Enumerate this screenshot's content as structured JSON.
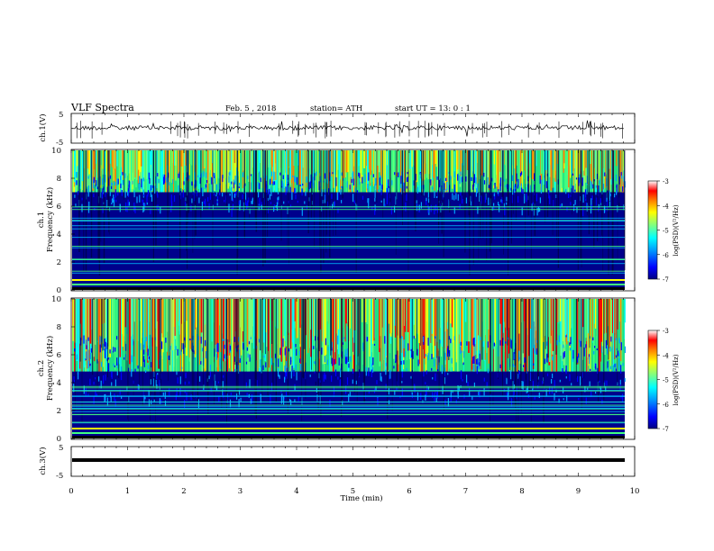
{
  "header": {
    "title": "VLF  Spectra",
    "date": "Feb. 5  , 2018",
    "station": "station= ATH",
    "start_ut": "start  UT  =    13: 0   : 1"
  },
  "colors": {
    "jet": [
      "#000080",
      "#0000ff",
      "#00a0ff",
      "#00ffff",
      "#80ff80",
      "#ffff00",
      "#ff8000",
      "#ff0000",
      "#ffffff"
    ]
  },
  "chart_data": [
    {
      "type": "line",
      "id": "ch1",
      "ylabel": "ch.1(V)",
      "ylim": [
        -5,
        5
      ],
      "yticks": [
        "5",
        "-5"
      ],
      "xlim": [
        0,
        10
      ]
    },
    {
      "type": "heatmap",
      "id": "spec1",
      "ylabel_top": "ch.1",
      "ylabel": "Frequency  (kHz)",
      "ylim": [
        0,
        10
      ],
      "yticks": [
        "0",
        "2",
        "4",
        "6",
        "8",
        "10"
      ],
      "xlim": [
        0,
        10
      ],
      "colorbar": {
        "label": "log(PSD)(V²/Hz)",
        "range": [
          -7,
          -3
        ],
        "ticks": [
          "-3",
          "-4",
          "-5",
          "-6",
          "-7"
        ]
      }
    },
    {
      "type": "heatmap",
      "id": "spec2",
      "ylabel_top": "ch.2",
      "ylabel": "Frequency  (kHz)",
      "ylim": [
        0,
        10
      ],
      "yticks": [
        "0",
        "2",
        "4",
        "6",
        "8",
        "10"
      ],
      "xlim": [
        0,
        10
      ],
      "colorbar": {
        "label": "log(PSD)(V²/Hz)",
        "range": [
          -7,
          -3
        ],
        "ticks": [
          "-3",
          "-4",
          "-5",
          "-6",
          "-7"
        ]
      }
    },
    {
      "type": "line",
      "id": "ch3",
      "ylabel": "ch.3(V)",
      "ylim": [
        -5,
        5
      ],
      "yticks": [
        "5",
        "-5"
      ],
      "xlim": [
        0,
        10
      ],
      "xlabel": "Time  (min)",
      "xticks": [
        "0",
        "1",
        "2",
        "3",
        "4",
        "5",
        "6",
        "7",
        "8",
        "9",
        "10"
      ]
    }
  ]
}
